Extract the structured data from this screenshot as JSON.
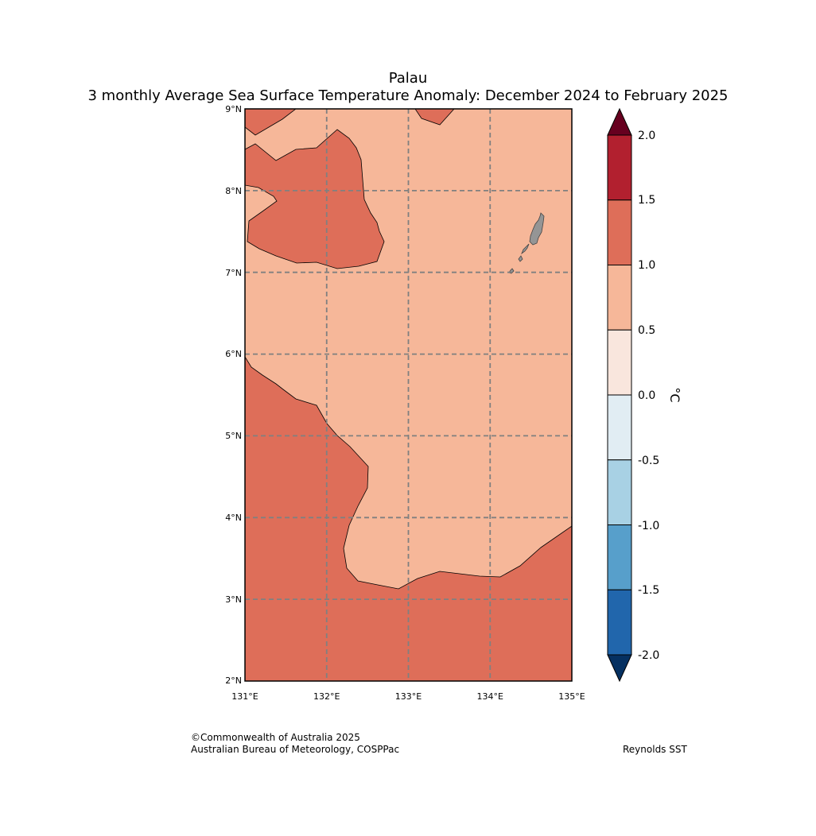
{
  "title": {
    "line1": "Palau",
    "line2": "3 monthly Average Sea Surface Temperature Anomaly: December 2024 to February 2025"
  },
  "axes": {
    "lat_labels": [
      "9°N",
      "8°N",
      "7°N",
      "6°N",
      "5°N",
      "4°N",
      "3°N",
      "2°N"
    ],
    "lon_labels": [
      "131°E",
      "132°E",
      "133°E",
      "134°E",
      "135°E"
    ],
    "lon_range": [
      131,
      135
    ],
    "lat_range": [
      2,
      9
    ]
  },
  "colorbar": {
    "unit": "°C",
    "ticks": [
      "2.0",
      "1.5",
      "1.0",
      "0.5",
      "0.0",
      "-0.5",
      "-1.0",
      "-1.5",
      "-2.0"
    ],
    "colors": {
      "above_max": "#67001f",
      "b1_5_2_0": "#b2202f",
      "b1_0_1_5": "#de6e59",
      "b0_5_1_0": "#f6b799",
      "b0_0_0_5": "#f9e6dd",
      "bn0_5_0_0": "#e1edf3",
      "bn1_0_n0_5": "#a8d1e4",
      "bn1_5_n1_0": "#579fcb",
      "bn2_0_n1_5": "#2166ac",
      "below_min": "#053061"
    }
  },
  "map": {
    "background_anomaly_band": "0.5 to 1.0",
    "land_color": "#959595",
    "grid_color": "#808080"
  },
  "footer": {
    "credit_line1": "©Commonwealth of Australia 2025",
    "credit_line2": "Australian Bureau of Meteorology, COSPPac",
    "source": "Reynolds SST"
  }
}
